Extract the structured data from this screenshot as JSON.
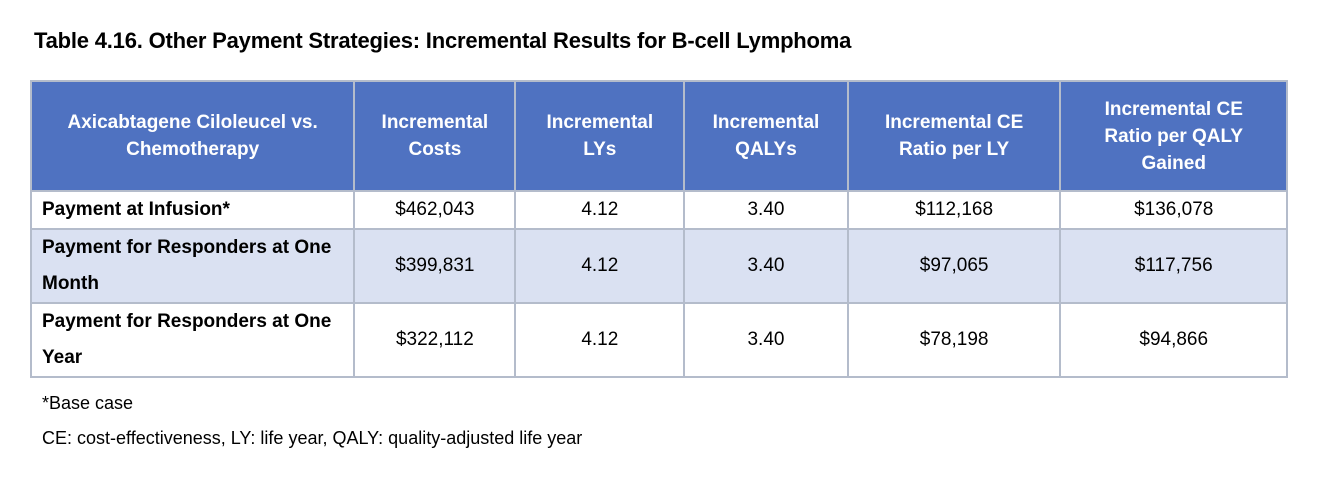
{
  "title": "Table 4.16. Other Payment Strategies: Incremental Results for B-cell Lymphoma",
  "colors": {
    "header_bg": "#4f72c1",
    "alt_row_bg": "#dae1f2",
    "border": "#b4bccb"
  },
  "table": {
    "headers": [
      "Axicabtagene Ciloleucel vs. Chemotherapy",
      "Incremental Costs",
      "Incremental LYs",
      "Incremental QALYs",
      "Incremental CE Ratio per LY",
      "Incremental CE Ratio per QALY Gained"
    ],
    "rows": [
      [
        "Payment at Infusion*",
        "$462,043",
        "4.12",
        "3.40",
        "$112,168",
        "$136,078"
      ],
      [
        "Payment for Responders at One Month",
        "$399,831",
        "4.12",
        "3.40",
        "$97,065",
        "$117,756"
      ],
      [
        "Payment for Responders at One Year",
        "$322,112",
        "4.12",
        "3.40",
        "$78,198",
        "$94,866"
      ]
    ]
  },
  "footnotes": [
    "*Base case",
    "CE: cost-effectiveness, LY: life year, QALY: quality-adjusted life year"
  ]
}
